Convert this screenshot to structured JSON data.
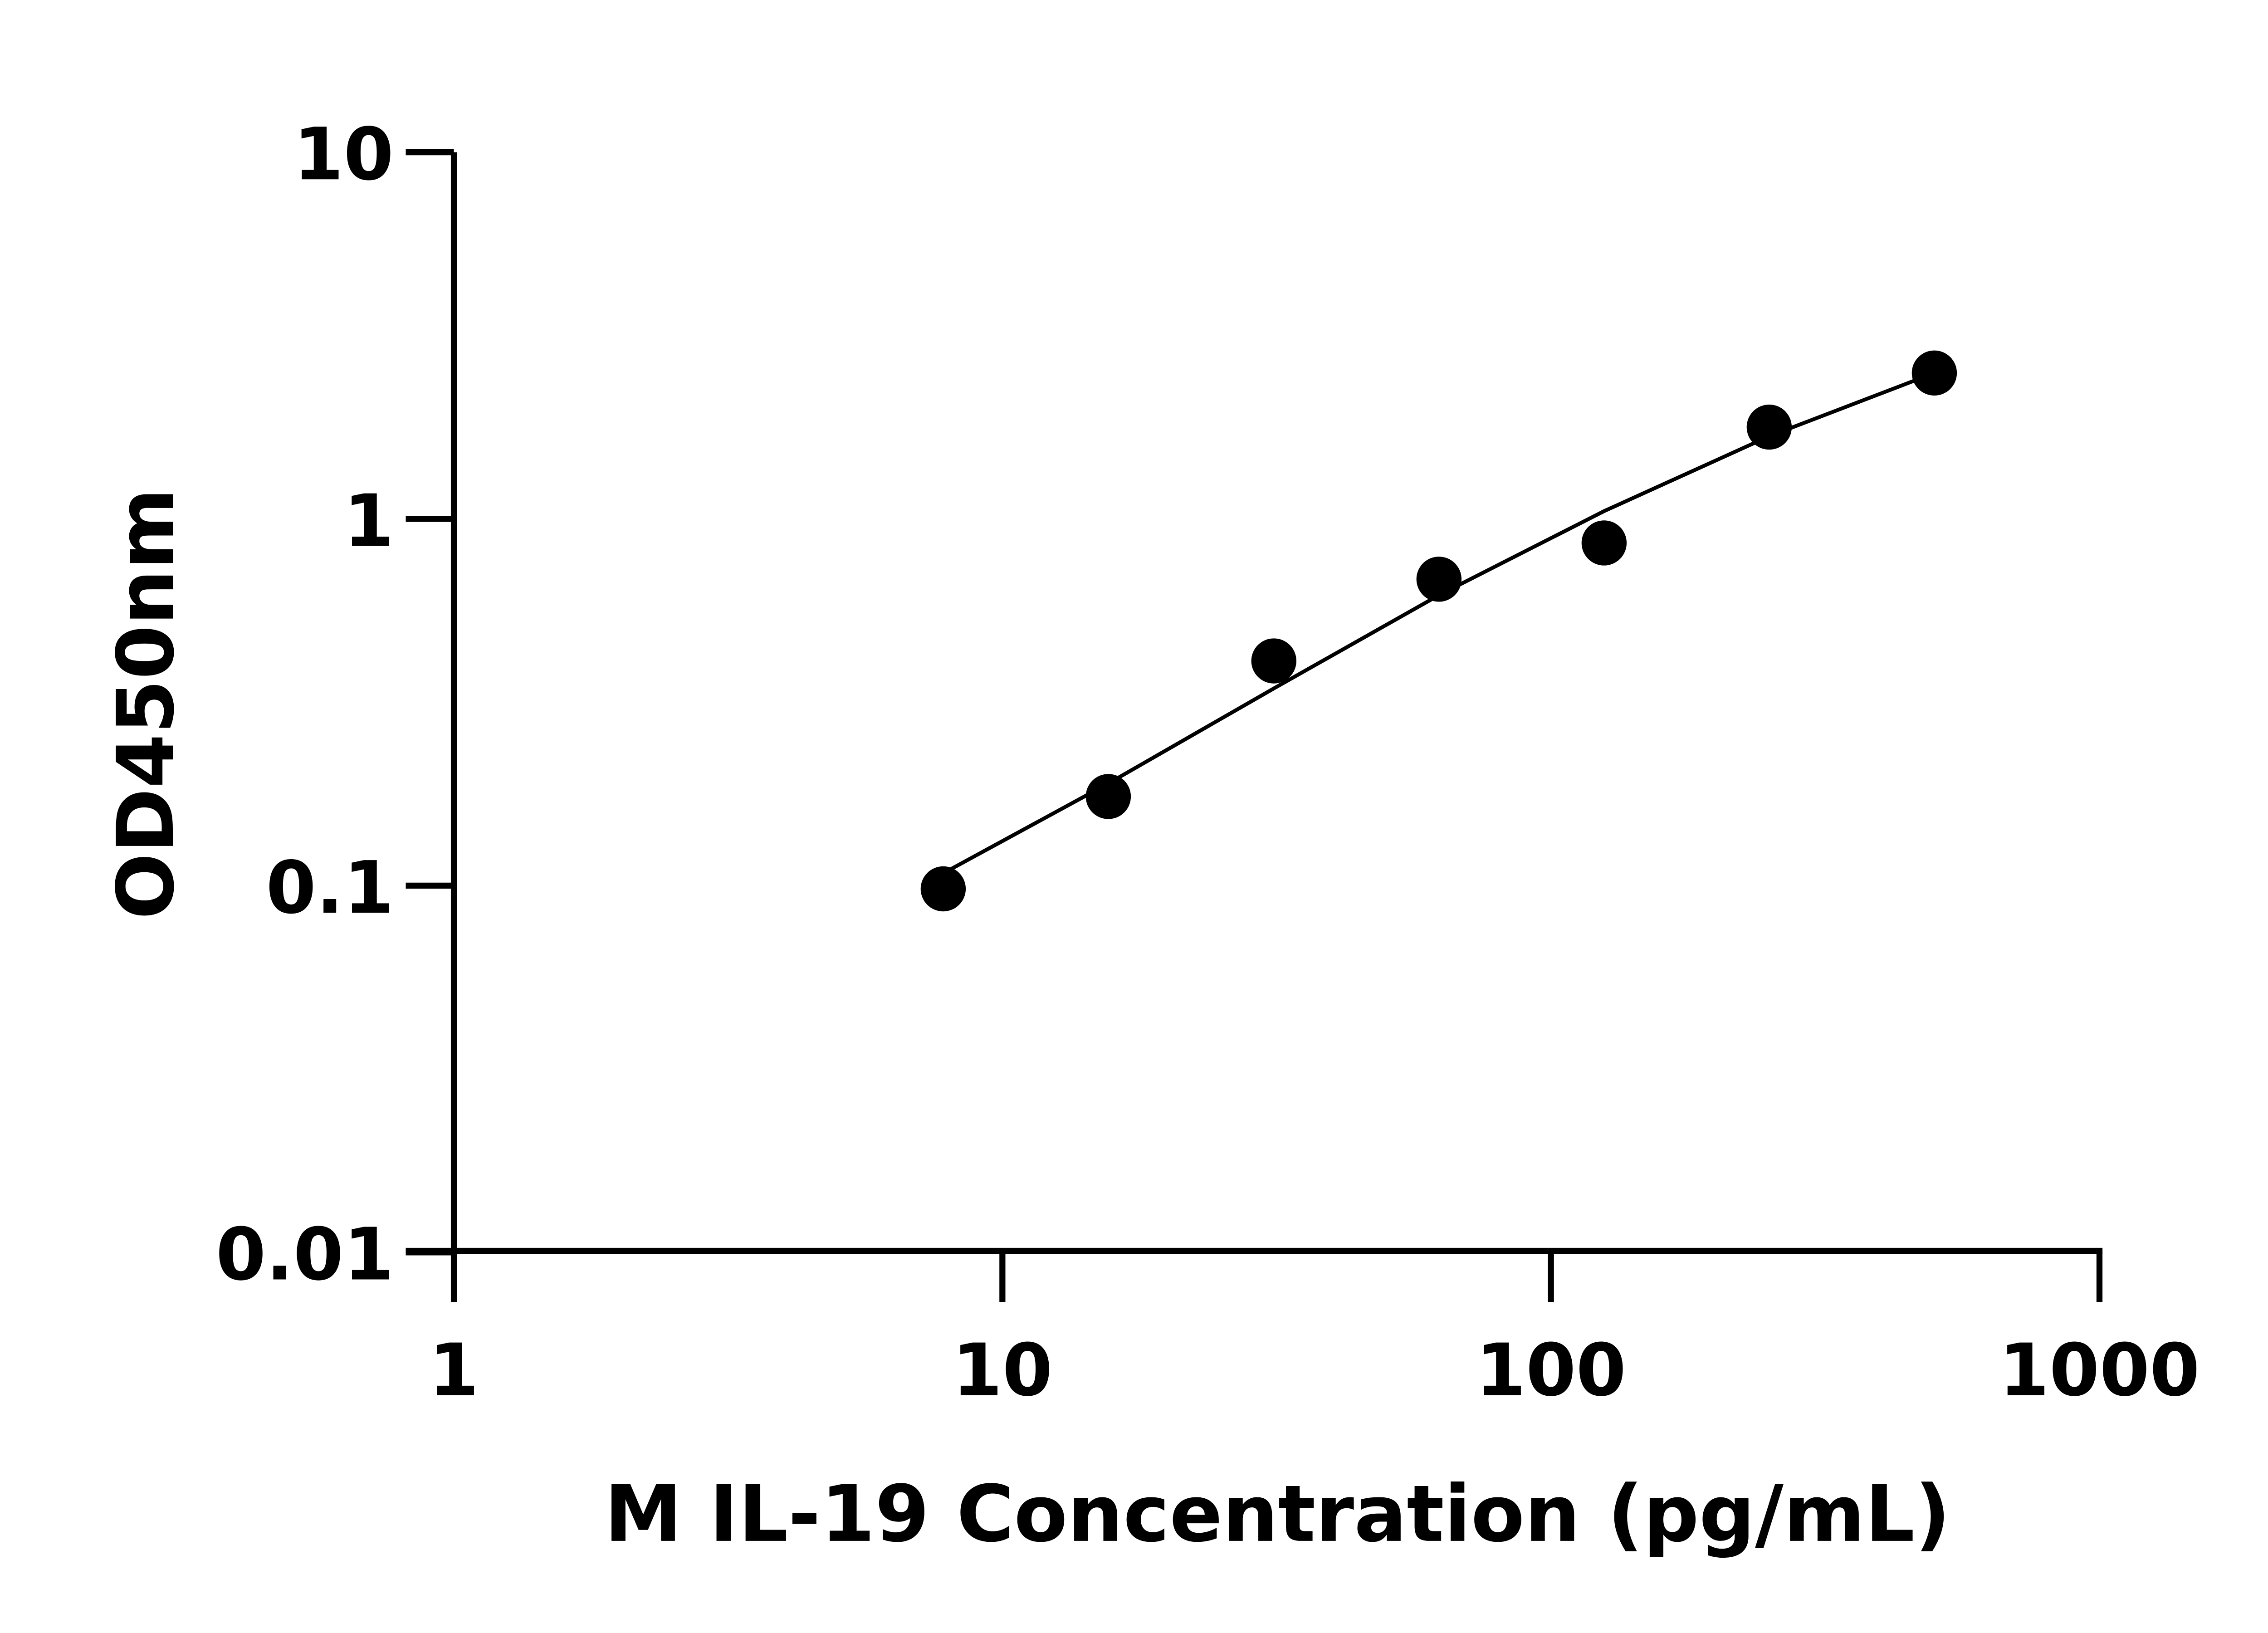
{
  "chart_data": {
    "type": "scatter",
    "title": "",
    "xlabel": "M IL-19 Concentration (pg/mL)",
    "ylabel": "OD450nm",
    "xscale": "log",
    "yscale": "log",
    "xlim": [
      1,
      1000
    ],
    "ylim": [
      0.01,
      10
    ],
    "xticks": [
      "1",
      "10",
      "100",
      "1000"
    ],
    "yticks": [
      "0.01",
      "0.1",
      "1",
      "10"
    ],
    "grid": false,
    "legend": "none",
    "color": "#000000",
    "series": [
      {
        "x": [
          7.8,
          15.6,
          31.25,
          62.5,
          125,
          250,
          500
        ],
        "y": [
          0.098,
          0.175,
          0.41,
          0.685,
          0.86,
          1.78,
          2.5
        ]
      }
    ],
    "fit_curve": {
      "x": [
        7.8,
        15.6,
        31.25,
        62.5,
        125,
        250,
        500
      ],
      "y": [
        0.108,
        0.19,
        0.345,
        0.62,
        1.05,
        1.68,
        2.5
      ]
    }
  }
}
